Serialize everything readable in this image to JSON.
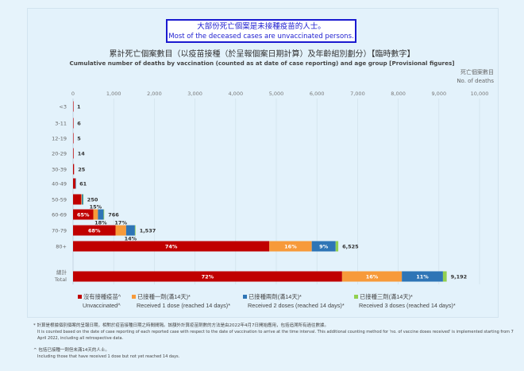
{
  "notice": {
    "zh": "大部份死亡個案是未接種疫苗的人士。",
    "en": "Most of the deceased cases are unvaccinated persons."
  },
  "chart_data": {
    "type": "bar",
    "orientation": "horizontal",
    "stacked": true,
    "title": "累計死亡個案數目（以疫苗接種（於呈報個案日期計算）及年齡組別劃分）【臨時數字】",
    "subtitle": "Cumulative number of deaths by vaccination (counted as at date of case reporting) and age group [Provisional figures]",
    "xlabel_zh": "死亡個案數目",
    "xlabel": "No. of deaths",
    "xlim": [
      0,
      10000
    ],
    "xticks": [
      "0",
      "1,000",
      "2,000",
      "3,000",
      "4,000",
      "5,000",
      "6,000",
      "7,000",
      "8,000",
      "9,000",
      "10,000"
    ],
    "grid": true,
    "categories": [
      "<3",
      "3-11",
      "12-19",
      "20-29",
      "30-39",
      "40-49",
      "50-59",
      "60-69",
      "70-79",
      "80+",
      "總計|Total"
    ],
    "totals": [
      1,
      6,
      5,
      14,
      25,
      61,
      250,
      766,
      1537,
      6525,
      9192
    ],
    "total_labels": [
      "1",
      "6",
      "5",
      "14",
      "25",
      "61",
      "250",
      "766",
      "1,537",
      "6,525",
      "9,192"
    ],
    "series": [
      {
        "name": "沒有接種疫苗^ Unvaccinated^",
        "color": "#c00000",
        "share_pct": [
          100,
          100,
          100,
          100,
          100,
          95,
          80,
          65,
          68,
          74,
          72
        ],
        "labels": [
          "",
          "",
          "",
          "",
          "",
          "",
          "",
          "65%",
          "68%",
          "74%",
          "72%"
        ]
      },
      {
        "name": "已接種一劑(滿14天)* Received 1 dose (reached 14 days)*",
        "color": "#f79a3a",
        "share_pct": [
          0,
          0,
          0,
          0,
          0,
          2,
          6,
          15,
          17,
          16,
          16
        ],
        "labels": [
          "",
          "",
          "",
          "",
          "",
          "",
          "",
          "15%",
          "17%",
          "16%",
          "16%"
        ]
      },
      {
        "name": "已接種兩劑(滿14天)* Received 2 doses (reached 14 days)*",
        "color": "#2e75b6",
        "share_pct": [
          0,
          0,
          0,
          0,
          0,
          3,
          12,
          18,
          14,
          9,
          11
        ],
        "labels": [
          "",
          "",
          "",
          "",
          "",
          "",
          "",
          "18%",
          "14%",
          "9%",
          "11%"
        ]
      },
      {
        "name": "已接種三劑(滿14天)* Received 3 doses (reached 14 days)*",
        "color": "#92d050",
        "share_pct": [
          0,
          0,
          0,
          0,
          0,
          0,
          2,
          2,
          1,
          1,
          1
        ],
        "labels": [
          "",
          "",
          "",
          "",
          "",
          "",
          "",
          "",
          "",
          "",
          ""
        ]
      }
    ],
    "legend": "bottom"
  },
  "legend": [
    {
      "zh": "沒有接種疫苗^",
      "en": "Unvaccinated^",
      "color": "#c00000"
    },
    {
      "zh": "已接種一劑(滿14天)*",
      "en": "Received 1 dose (reached 14 days)*",
      "color": "#f79a3a"
    },
    {
      "zh": "已接種兩劑(滿14天)*",
      "en": "Received 2 doses (reached 14 days)*",
      "color": "#2e75b6"
    },
    {
      "zh": "已接種三劑(滿14天)*",
      "en": "Received 3 doses (reached 14 days)*",
      "color": "#92d050"
    }
  ],
  "notes": {
    "n1_zh": "* 計算是根據個別個案的呈報日期，相對於疫苗接種日期之時間間隔。該額外計算疫苗劑數的方法是由2022年4月7日開始應用，包括追溯所有過往數據。",
    "n1_en": "It is counted based on the date of case reporting of each reported case with respect to the date of vaccination to arrive at the time interval. This additional counting method for 'no. of vaccine doses received' is implemented starting from 7 April 2022, including all retrospective data.",
    "n2_zh": "^ 包括已接種一劑但未滿14天的人士。",
    "n2_en": "Including those that have received 1 dose but not yet reached 14 days."
  }
}
